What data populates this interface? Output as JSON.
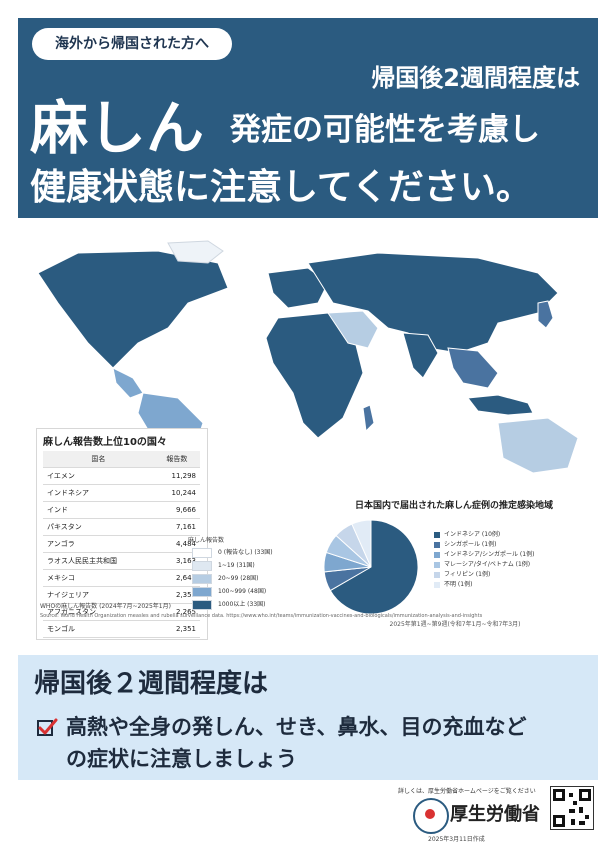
{
  "header": {
    "pill": "海外から帰国された方へ",
    "subhead": "帰国後2週間程度は",
    "headline_big": "麻しん",
    "headline_rest": "発症の可能性を考慮し",
    "headline2": "健康状態に注意してください。"
  },
  "top10": {
    "title": "麻しん報告数上位10の国々",
    "headers": [
      "国名",
      "報告数"
    ],
    "rows": [
      {
        "country": "イエメン",
        "count": "11,298"
      },
      {
        "country": "インドネシア",
        "count": "10,244"
      },
      {
        "country": "インド",
        "count": "9,666"
      },
      {
        "country": "パキスタン",
        "count": "7,161"
      },
      {
        "country": "アンゴラ",
        "count": "4,484"
      },
      {
        "country": "ラオス人民民主共和国",
        "count": "3,163"
      },
      {
        "country": "メキシコ",
        "count": "2,648"
      },
      {
        "country": "ナイジェリア",
        "count": "2,353"
      },
      {
        "country": "アフガニスタン",
        "count": "2,265"
      },
      {
        "country": "モンゴル",
        "count": "2,351"
      }
    ]
  },
  "legend": {
    "title": "麻しん報告数",
    "colors": [
      "#ffffff",
      "#dfe8f1",
      "#b6cde3",
      "#7ea7cf",
      "#2b5b80"
    ],
    "items": [
      "0 (報告なし) (33国)",
      "1~19 (31国)",
      "20~99 (28国)",
      "100~999 (48国)",
      "1000以上 (33国)"
    ]
  },
  "source_note": "WHOの麻しん報告数 (2024年7月~2025年1月)",
  "tiny_note": "Source: World Health Organization measles and rubella surveillance data. https://www.who.int/teams/immunization-vaccines-and-biologicals/immunization-analysis-and-insights",
  "pie": {
    "title": "日本国内で届出された麻しん症例の推定感染地域",
    "colors": [
      "#2b5b80",
      "#4a73a0",
      "#7ea7cf",
      "#a9c6e3",
      "#c6d6ea",
      "#e1ebf6"
    ],
    "legend": [
      "インドネシア (10例)",
      "シンガポール (1例)",
      "インドネシア/シンガポール (1例)",
      "マレーシア/タイ/ベトナム (1例)",
      "フィリピン (1例)",
      "不明 (1例)"
    ],
    "note": "2025年第1週~第9週(令和7年1月~令和7年3月)"
  },
  "bottom": {
    "title": "帰国後２週間程度は",
    "line1": "高熱や全身の発しん、せき、鼻水、目の充血など",
    "line2": "の症状に注意しましょう"
  },
  "footer": {
    "top_text": "詳しくは、厚生労働省ホームページをご覧ください",
    "ministry": "厚生労働省",
    "date": "2025年3月11日作成"
  },
  "chart_data": [
    {
      "type": "table",
      "title": "麻しん報告数上位10の国々",
      "headers": [
        "国名",
        "報告数"
      ],
      "rows": [
        [
          "イエメン",
          11298
        ],
        [
          "インドネシア",
          10244
        ],
        [
          "インド",
          9666
        ],
        [
          "パキスタン",
          7161
        ],
        [
          "アンゴラ",
          4484
        ],
        [
          "ラオス人民民主共和国",
          3163
        ],
        [
          "メキシコ",
          2648
        ],
        [
          "ナイジェリア",
          2353
        ],
        [
          "アフガニスタン",
          2265
        ],
        [
          "モンゴル",
          2351
        ]
      ]
    },
    {
      "type": "pie",
      "title": "日本国内で届出された麻しん症例の推定感染地域",
      "categories": [
        "インドネシア",
        "シンガポール",
        "インドネシア/シンガポール",
        "マレーシア/タイ/ベトナム",
        "フィリピン",
        "不明"
      ],
      "values": [
        10,
        1,
        1,
        1,
        1,
        1
      ]
    }
  ]
}
